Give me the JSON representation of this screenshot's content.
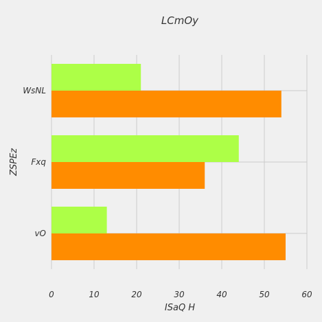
{
  "chart_data": {
    "type": "bar",
    "orientation": "horizontal",
    "title": "LCmOy",
    "xlabel": "ISaQ  H",
    "ylabel": "ZSPEz",
    "categories": [
      "vO",
      "Fxq",
      "WsNL"
    ],
    "series": [
      {
        "values": [
          55,
          36,
          54
        ],
        "color": "#ff8c00"
      },
      {
        "values": [
          13,
          44,
          21
        ],
        "color": "#adff47"
      }
    ],
    "xlim": [
      0,
      60
    ],
    "xticks": [
      0,
      10,
      20,
      30,
      40,
      50,
      60
    ],
    "grid": true,
    "legend": "none"
  },
  "colors": {
    "background": "#f0f0f0",
    "grid": "#cbcbcb",
    "text": "#333333"
  }
}
